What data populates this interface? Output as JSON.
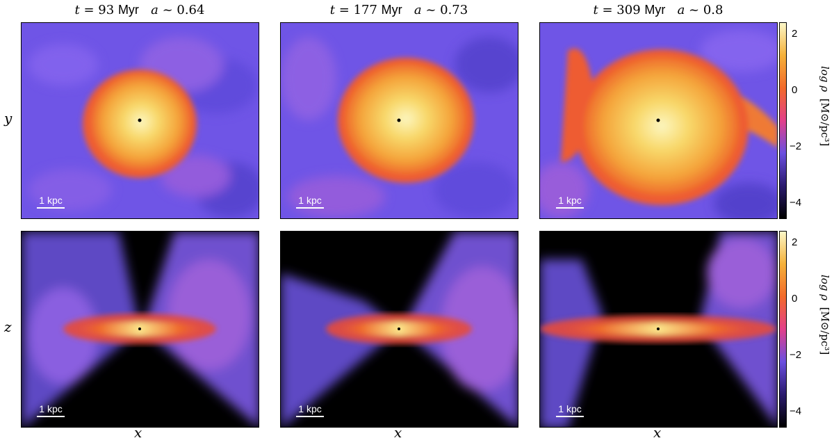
{
  "columns": [
    {
      "t_prefix": "t",
      "t_text": "= 93",
      "unit": "Myr",
      "a_prefix": "a",
      "a_text": "~ 0.64"
    },
    {
      "t_prefix": "t",
      "t_text": "= 177",
      "unit": "Myr",
      "a_prefix": "a",
      "a_text": "~ 0.73"
    },
    {
      "t_prefix": "t",
      "t_text": "= 309",
      "unit": "Myr",
      "a_prefix": "a",
      "a_text": "~ 0.8"
    }
  ],
  "axes": {
    "row1_ylabel": "y",
    "row2_ylabel": "z",
    "xlabel": "x"
  },
  "scalebar": {
    "label": "1 kpc"
  },
  "colorbar": {
    "label_main": "log ρ",
    "label_units": "[M⊙/pc³]",
    "ticks": [
      "2",
      "0",
      "−2",
      "−4"
    ],
    "colormap": [
      "#000000",
      "#2a1a6e",
      "#6b4fe0",
      "#e2408a",
      "#f26a2b",
      "#f5b13a",
      "#fbf7c8"
    ]
  }
}
